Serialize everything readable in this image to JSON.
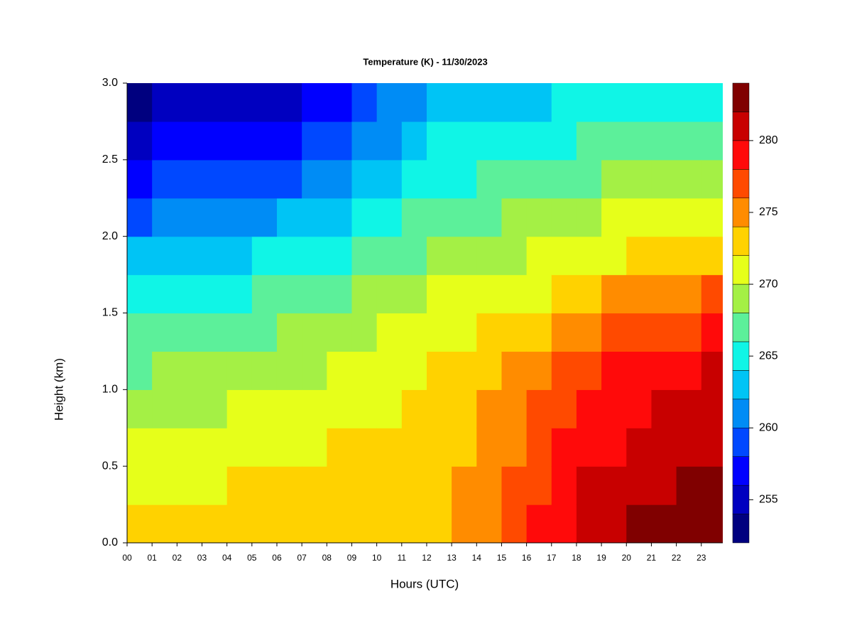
{
  "chart_data": {
    "type": "contour",
    "title": "Temperature (K) - 11/30/2023",
    "xlabel": "Hours (UTC)",
    "ylabel": "Height (km)",
    "x": [
      0,
      1,
      2,
      3,
      4,
      5,
      6,
      7,
      8,
      9,
      10,
      11,
      12,
      13,
      14,
      15,
      16,
      17,
      18,
      19,
      20,
      21,
      22,
      23
    ],
    "y": [
      0,
      0.25,
      0.5,
      0.75,
      1,
      1.25,
      1.5,
      1.75,
      2,
      2.25,
      2.5,
      2.75
    ],
    "z": [
      [
        272.3,
        271.2,
        270.3,
        269.2,
        267.8,
        266.0,
        264.3,
        262.0,
        259.8,
        257.8,
        255.8,
        253.8
      ],
      [
        272.4,
        271.4,
        270.5,
        269.4,
        268.1,
        266.3,
        264.7,
        262.4,
        260.2,
        258.1,
        256.0,
        254.0
      ],
      [
        272.5,
        271.6,
        270.7,
        269.6,
        268.4,
        266.7,
        265.0,
        262.8,
        260.5,
        258.4,
        256.2,
        254.2
      ],
      [
        272.6,
        271.8,
        270.9,
        269.8,
        268.6,
        267.0,
        265.4,
        263.2,
        260.9,
        258.6,
        256.4,
        254.4
      ],
      [
        272.8,
        272.1,
        271.1,
        270.1,
        268.9,
        267.3,
        265.8,
        263.7,
        261.3,
        258.9,
        256.6,
        254.6
      ],
      [
        272.9,
        272.3,
        271.3,
        270.3,
        269.2,
        267.7,
        266.1,
        264.1,
        261.6,
        259.2,
        256.8,
        254.8
      ],
      [
        273.0,
        272.5,
        271.5,
        270.5,
        269.5,
        268.0,
        266.5,
        264.5,
        262.0,
        259.5,
        257.0,
        255.0
      ],
      [
        273.1,
        272.7,
        271.8,
        270.9,
        269.9,
        268.5,
        267.1,
        265.2,
        262.9,
        260.5,
        258.2,
        256.3
      ],
      [
        273.3,
        272.8,
        272.0,
        271.2,
        270.3,
        269.0,
        267.7,
        265.9,
        263.7,
        261.5,
        259.3,
        257.5
      ],
      [
        273.4,
        273.0,
        272.3,
        271.6,
        270.8,
        269.5,
        268.3,
        266.6,
        264.6,
        262.6,
        260.5,
        258.8
      ],
      [
        273.5,
        273.1,
        272.5,
        271.9,
        271.2,
        270.0,
        268.8,
        267.2,
        265.5,
        263.6,
        261.7,
        260.0
      ],
      [
        273.7,
        273.3,
        272.8,
        272.3,
        271.6,
        270.5,
        269.4,
        267.9,
        266.3,
        264.6,
        262.8,
        261.3
      ],
      [
        273.8,
        273.4,
        273.0,
        272.6,
        272.0,
        271.0,
        270.0,
        268.6,
        267.2,
        265.6,
        264.0,
        262.5
      ],
      [
        274.9,
        274.4,
        273.8,
        273.4,
        272.7,
        271.5,
        270.3,
        268.9,
        267.5,
        265.9,
        264.3,
        262.8
      ],
      [
        275.9,
        275.5,
        274.7,
        274.2,
        273.3,
        272.0,
        270.7,
        269.2,
        267.7,
        266.2,
        264.7,
        263.2
      ],
      [
        277.0,
        276.5,
        275.5,
        275.0,
        274.0,
        272.5,
        271.0,
        269.5,
        268.0,
        266.5,
        265.0,
        263.5
      ],
      [
        278.3,
        277.7,
        276.7,
        276.2,
        275.3,
        273.6,
        271.8,
        270.0,
        268.6,
        266.9,
        265.3,
        263.8
      ],
      [
        279.7,
        278.8,
        278.0,
        277.4,
        276.5,
        274.7,
        272.7,
        270.5,
        269.2,
        267.4,
        265.7,
        264.0
      ],
      [
        281.0,
        280.0,
        279.2,
        278.6,
        277.8,
        275.8,
        273.5,
        271.0,
        269.8,
        267.8,
        266.0,
        264.3
      ],
      [
        281.5,
        280.6,
        279.9,
        279.2,
        278.4,
        276.4,
        274.2,
        271.6,
        270.2,
        268.2,
        266.3,
        264.5
      ],
      [
        282.0,
        281.2,
        280.5,
        279.9,
        278.9,
        276.9,
        274.8,
        272.2,
        270.6,
        268.6,
        266.7,
        264.8
      ],
      [
        282.5,
        281.8,
        281.2,
        280.5,
        279.5,
        277.5,
        275.5,
        272.8,
        271.0,
        269.0,
        267.0,
        265.0
      ],
      [
        282.9,
        282.1,
        281.5,
        280.8,
        279.8,
        277.9,
        275.9,
        273.3,
        271.4,
        269.3,
        267.3,
        265.3
      ],
      [
        283.2,
        282.4,
        281.8,
        281.0,
        280.0,
        278.3,
        276.2,
        273.8,
        271.8,
        269.5,
        267.5,
        265.5
      ]
    ],
    "levels": [
      252,
      254,
      256,
      258,
      260,
      262,
      264,
      266,
      268,
      270,
      272,
      274,
      276,
      278,
      280,
      282,
      284
    ],
    "colors": [
      "#00007f",
      "#0000c0",
      "#0000ff",
      "#0048ff",
      "#008cf5",
      "#00c4f5",
      "#10f5e6",
      "#5cf09a",
      "#a4f045",
      "#e6ff1a",
      "#ffd200",
      "#ff8c00",
      "#ff4a00",
      "#ff0a0a",
      "#c80000",
      "#800000"
    ],
    "xlim": [
      0,
      23.86
    ],
    "ylim": [
      0,
      3
    ],
    "xticks": [
      {
        "value": 0,
        "label": "00"
      },
      {
        "value": 1,
        "label": "01"
      },
      {
        "value": 2,
        "label": "02"
      },
      {
        "value": 3,
        "label": "03"
      },
      {
        "value": 4,
        "label": "04"
      },
      {
        "value": 5,
        "label": "05"
      },
      {
        "value": 6,
        "label": "06"
      },
      {
        "value": 7,
        "label": "07"
      },
      {
        "value": 8,
        "label": "08"
      },
      {
        "value": 9,
        "label": "09"
      },
      10,
      11,
      12,
      13,
      14,
      15,
      16,
      17,
      18,
      19,
      20,
      21,
      22,
      23
    ],
    "yticks": [
      {
        "value": 0,
        "label": "0.0"
      },
      0.5,
      {
        "value": 1,
        "label": "1.0"
      },
      1.5,
      {
        "value": 2,
        "label": "2.0"
      },
      2.5,
      {
        "value": 3,
        "label": "3.0"
      }
    ],
    "colorbar_ticks": [
      255,
      260,
      265,
      270,
      275,
      280
    ]
  }
}
